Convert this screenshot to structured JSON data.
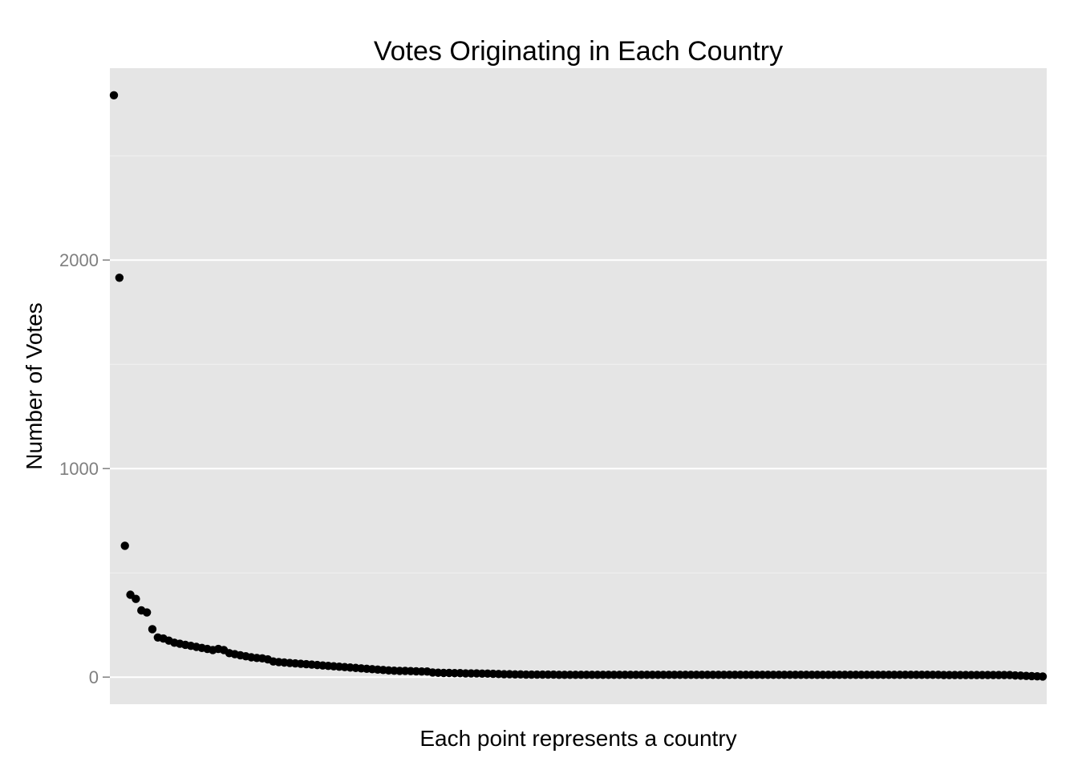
{
  "chart_data": {
    "type": "scatter",
    "title": "Votes Originating in Each Country",
    "xlabel": "Each point represents a country",
    "ylabel": "Number of Votes",
    "ylim": [
      -130,
      2920
    ],
    "y_ticks": [
      0,
      1000,
      2000
    ],
    "y_tick_labels": [
      "0",
      "1000",
      "2000"
    ],
    "x_ticks_shown": false,
    "grid": true,
    "colors": {
      "panel": "#e5e5e5",
      "grid_major": "#ffffff",
      "grid_minor": "#f2f2f2",
      "point": "#000000",
      "tick_text": "#7f7f7f"
    },
    "series": [
      {
        "values": [
          2790,
          1915,
          630,
          395,
          375,
          320,
          310,
          230,
          190,
          185,
          175,
          165,
          160,
          155,
          150,
          145,
          140,
          135,
          130,
          135,
          130,
          115,
          110,
          105,
          100,
          95,
          92,
          90,
          85,
          75,
          72,
          70,
          68,
          66,
          64,
          62,
          60,
          58,
          56,
          54,
          52,
          50,
          48,
          46,
          44,
          42,
          40,
          38,
          36,
          34,
          32,
          31,
          30,
          30,
          29,
          28,
          27,
          27,
          22,
          21,
          20,
          20,
          19,
          19,
          18,
          18,
          18,
          17,
          17,
          16,
          15,
          14,
          14,
          13,
          13,
          12,
          12,
          12,
          12,
          12,
          12,
          11,
          11,
          11,
          11,
          11,
          11,
          11,
          11,
          11,
          11,
          11,
          11,
          11,
          11,
          11,
          11,
          11,
          11,
          11,
          11,
          11,
          11,
          11,
          11,
          11,
          11,
          11,
          11,
          11,
          11,
          11,
          11,
          11,
          11,
          11,
          11,
          11,
          11,
          11,
          11,
          11,
          11,
          11,
          11,
          11,
          11,
          11,
          11,
          11,
          11,
          11,
          11,
          11,
          11,
          11,
          11,
          11,
          11,
          11,
          11,
          11,
          11,
          11,
          11,
          11,
          11,
          11,
          11,
          11,
          11,
          10,
          10,
          10,
          10,
          10,
          10,
          10,
          10,
          10,
          10,
          10,
          10,
          10,
          8,
          7,
          6,
          5,
          4,
          3
        ]
      }
    ]
  }
}
